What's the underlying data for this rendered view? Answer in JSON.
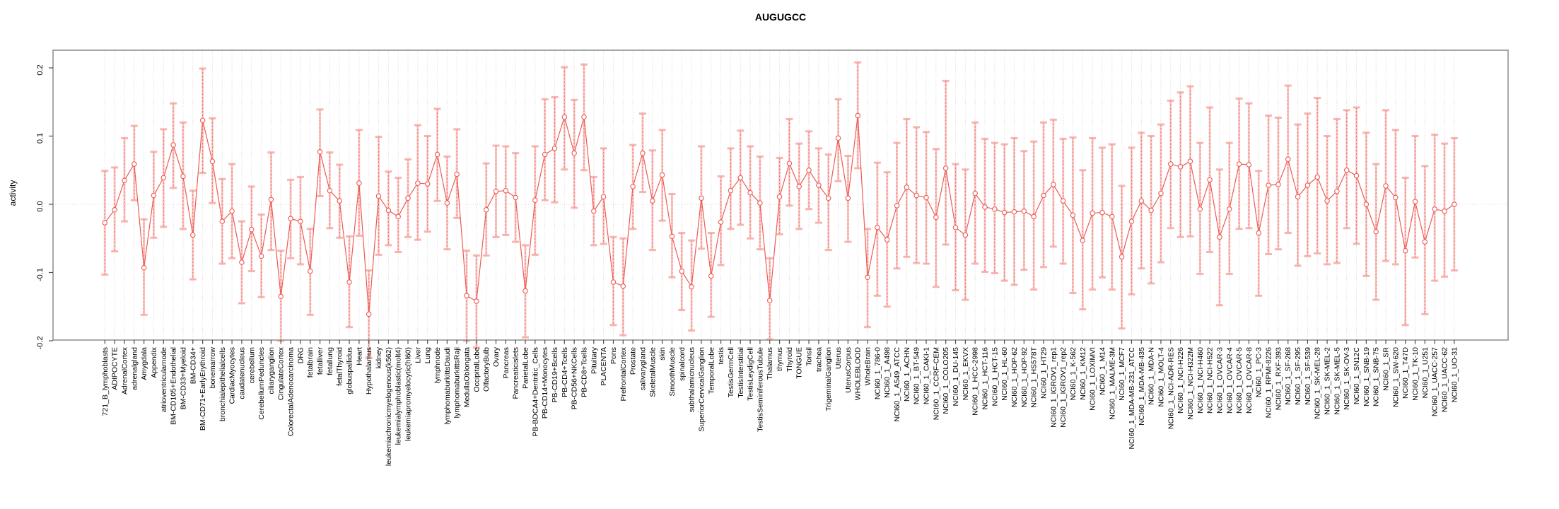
{
  "chart_data": {
    "type": "scatter",
    "subtype": "points-with-error-bars-and-connecting-line",
    "title": "AUGUGCC",
    "xlabel": "",
    "ylabel": "activity",
    "ylim": [
      -0.23,
      0.23
    ],
    "yticks": [
      0.2,
      0.1,
      0.0,
      -0.1,
      -0.2
    ],
    "ytick_labels": [
      "0.2",
      "0.1",
      "0.0",
      "-0.1",
      "-0.2"
    ],
    "grid": "vertical dotted gridline at every category; dotted horizontal line at 0",
    "legend_position": "none",
    "series_name": "activity",
    "categories": [
      "721_B_lymphoblasts",
      "ADIPOCYTE",
      "AdrenalCortex",
      "adrenalgland",
      "Amygdala",
      "Appendix",
      "atrioventricularnode",
      "BM-CD105+Endothelial",
      "BM-CD33+Myeloid",
      "BM-CD34+",
      "BM-CD71+EarlyErythroid",
      "bonemarrow",
      "bronchialepithelialcells",
      "CardiacMyocytes",
      "caudatenucleus",
      "cerebellum",
      "CerebellumPeduncles",
      "ciliaryganglion",
      "CingulateCortex",
      "ColorectalAdenocarcinoma",
      "DRG",
      "fetalbrain",
      "fetalliver",
      "fetallung",
      "fetalThyroid",
      "globuspallidus",
      "Heart",
      "Hypothalamus",
      "kidney",
      "leukemiachronicmyelogenous(k562)",
      "leukemialymphoblastic(molt4)",
      "leukemiapromyelocytic(hl60)",
      "Liver",
      "Lung",
      "lymphnode",
      "lymphomaburkittsDaudi",
      "lymphomaburkittsRaji",
      "MedullaOblongata",
      "OccipitalLobe",
      "OlfactoryBulb",
      "Ovary",
      "Pancreas",
      "Pancreaticislets",
      "ParietalLobe",
      "PB-BDCA4+Dentritic_Cells",
      "PB-CD14+Monocytes",
      "PB-CD19+Bcells",
      "PB-CD4+Tcells",
      "PB-CD56+NKCells",
      "PB-CD8+Tcells",
      "Pituitary",
      "PLACENTA",
      "Pons",
      "PrefrontalCortex",
      "Prostate",
      "salivarygland",
      "SkeletalMuscle",
      "skin",
      "SmoothMuscle",
      "spinalcord",
      "subthalamicnucleus",
      "SuperiorCervicalGanglion",
      "TemporalLobe",
      "testis",
      "TestisGermCell",
      "TestisInterstitial",
      "TestisLeydigCell",
      "TestisSeminiferousTubule",
      "Thalamus",
      "thymus",
      "Thyroid",
      "TONGUE",
      "Tonsil",
      "trachea",
      "TrigeminalGanglion",
      "Uterus",
      "UterusCorpus",
      "WHOLEBLOOD",
      "WholeBrain",
      "NCI60_1_786-0",
      "NCI60_1_A498",
      "NCI60_1_A549_ATCC",
      "NCI60_1_ACHN",
      "NCI60_1_BT-549",
      "NCI60_1_CAKI-1",
      "NCI60_1_CCRF-CEM",
      "NCI60_1_COLO205",
      "NCI60_1_DU-145",
      "NCI60_1_EKVX",
      "NCI60_1_HCC-2998",
      "NCI60_1_HCT-116",
      "NCI60_1_HCT-15",
      "NCI60_1_HL-60",
      "NCI60_1_HOP-62",
      "NCI60_1_HOP-92",
      "NCI60_1_HS578T",
      "NCI60_1_HT29",
      "NCI60_1_IGROV1_rep1",
      "NCI60_1_IGROV1_rep2",
      "NCI60_1_K-562",
      "NCI60_1_KM12",
      "NCI60_1_LOXIMVI",
      "NCI60_1_M14",
      "NCI60_1_MALME-3M",
      "NCI60_1_MCF7",
      "NCI60_1_MDA-MB-231_ATCC",
      "NCI60_1_MDA-MB-435",
      "NCI60_1_MDA-N",
      "NCI60_1_MOLT-4",
      "NCI60_1_NCI-ADR-RES",
      "NCI60_1_NCI-H226",
      "NCI60_1_NCI-H322M",
      "NCI60_1_NCI-H460",
      "NCI60_1_NCI-H522",
      "NCI60_1_OVCAR-3",
      "NCI60_1_OVCAR-4",
      "NCI60_1_OVCAR-5",
      "NCI60_1_OVCAR-8",
      "NCI60_1_PC-3",
      "NCI60_1_RPMI-8226",
      "NCI60_1_RXF-393",
      "NCI60_1_SF-268",
      "NCI60_1_SF-295",
      "NCI60_1_SF-539",
      "NCI60_1_SK-MEL-28",
      "NCI60_1_SK-MEL-2",
      "NCI60_1_SK-MEL-5",
      "NCI60_1_SK-OV-3",
      "NCI60_1_SN12C",
      "NCI60_1_SNB-19",
      "NCI60_1_SNB-75",
      "NCI60_1_SR",
      "NCI60_1_SW-620",
      "NCI60_1_T47D",
      "NCI60_1_TK-10",
      "NCI60_1_U251",
      "NCI60_1_UACC-257",
      "NCI60_1_UACC-62",
      "NCI60_1_UO-31"
    ],
    "values": [
      -0.027,
      -0.008,
      0.035,
      0.059,
      -0.093,
      0.013,
      0.039,
      0.087,
      0.041,
      -0.045,
      0.123,
      0.063,
      -0.025,
      -0.01,
      -0.085,
      -0.037,
      -0.076,
      0.007,
      -0.135,
      -0.021,
      -0.025,
      -0.098,
      0.077,
      0.02,
      0.005,
      -0.114,
      0.031,
      -0.161,
      0.012,
      -0.009,
      -0.018,
      0.009,
      0.031,
      0.03,
      0.073,
      0.002,
      0.044,
      -0.134,
      -0.142,
      -0.008,
      0.019,
      0.02,
      0.01,
      -0.127,
      0.006,
      0.073,
      0.082,
      0.128,
      0.075,
      0.128,
      -0.01,
      0.011,
      -0.114,
      -0.12,
      0.026,
      0.075,
      0.005,
      0.043,
      -0.047,
      -0.098,
      -0.121,
      0.009,
      -0.105,
      -0.026,
      0.02,
      0.039,
      0.017,
      0.002,
      -0.141,
      0.011,
      0.06,
      0.026,
      0.05,
      0.028,
      0.009,
      0.097,
      0.009,
      0.13,
      -0.107,
      -0.034,
      -0.052,
      -0.002,
      0.025,
      0.013,
      0.01,
      -0.019,
      0.053,
      -0.034,
      -0.045,
      0.016,
      -0.004,
      -0.007,
      -0.012,
      -0.011,
      -0.01,
      -0.018,
      0.013,
      0.029,
      0.005,
      -0.016,
      -0.053,
      -0.013,
      -0.012,
      -0.018,
      -0.077,
      -0.025,
      0.005,
      -0.009,
      0.016,
      0.059,
      0.055,
      0.063,
      -0.007,
      0.036,
      -0.048,
      -0.007,
      0.059,
      0.058,
      -0.042,
      0.028,
      0.029,
      0.066,
      0.011,
      0.028,
      0.04,
      0.005,
      0.019,
      0.05,
      0.042,
      0.0,
      -0.04,
      0.027,
      0.01,
      -0.068,
      0.004,
      -0.055,
      -0.007,
      -0.01,
      0.0
    ],
    "ci_low": [
      -0.103,
      -0.069,
      -0.025,
      0.006,
      -0.162,
      -0.049,
      -0.033,
      0.024,
      -0.036,
      -0.11,
      0.046,
      0.002,
      -0.087,
      -0.079,
      -0.145,
      -0.098,
      -0.136,
      -0.067,
      -0.2,
      -0.079,
      -0.088,
      -0.162,
      0.012,
      -0.035,
      -0.049,
      -0.18,
      -0.046,
      -0.225,
      -0.074,
      -0.06,
      -0.07,
      -0.048,
      -0.052,
      -0.04,
      0.005,
      -0.066,
      -0.02,
      -0.2,
      -0.21,
      -0.075,
      -0.048,
      -0.045,
      -0.055,
      -0.195,
      -0.074,
      0.006,
      0.003,
      0.051,
      -0.005,
      0.05,
      -0.06,
      -0.058,
      -0.177,
      -0.192,
      -0.036,
      0.018,
      -0.067,
      -0.024,
      -0.107,
      -0.155,
      -0.185,
      -0.065,
      -0.165,
      -0.089,
      -0.036,
      -0.03,
      -0.05,
      -0.066,
      -0.198,
      -0.044,
      -0.002,
      -0.036,
      -0.007,
      -0.027,
      -0.067,
      0.034,
      -0.055,
      0.053,
      -0.18,
      -0.134,
      -0.15,
      -0.094,
      -0.077,
      -0.086,
      -0.087,
      -0.121,
      -0.059,
      -0.126,
      -0.14,
      -0.087,
      -0.099,
      -0.101,
      -0.112,
      -0.118,
      -0.096,
      -0.125,
      -0.092,
      -0.062,
      -0.087,
      -0.13,
      -0.154,
      -0.125,
      -0.107,
      -0.125,
      -0.182,
      -0.132,
      -0.094,
      -0.116,
      -0.085,
      -0.035,
      -0.048,
      -0.047,
      -0.102,
      -0.07,
      -0.148,
      -0.102,
      -0.036,
      -0.035,
      -0.134,
      -0.073,
      -0.066,
      -0.042,
      -0.09,
      -0.076,
      -0.072,
      -0.088,
      -0.086,
      -0.035,
      -0.058,
      -0.105,
      -0.14,
      -0.083,
      -0.088,
      -0.177,
      -0.078,
      -0.161,
      -0.112,
      -0.106,
      -0.097
    ],
    "ci_high": [
      0.049,
      0.054,
      0.097,
      0.115,
      -0.022,
      0.077,
      0.11,
      0.148,
      0.12,
      0.02,
      0.199,
      0.126,
      0.037,
      0.059,
      -0.025,
      0.026,
      -0.015,
      0.076,
      -0.068,
      0.036,
      0.04,
      -0.036,
      0.139,
      0.076,
      0.058,
      -0.047,
      0.109,
      -0.097,
      0.099,
      0.048,
      0.039,
      0.066,
      0.116,
      0.1,
      0.14,
      0.07,
      0.11,
      -0.068,
      -0.075,
      0.06,
      0.086,
      0.085,
      0.075,
      -0.06,
      0.085,
      0.154,
      0.157,
      0.201,
      0.153,
      0.205,
      0.04,
      0.082,
      -0.048,
      -0.05,
      0.087,
      0.133,
      0.079,
      0.109,
      0.015,
      -0.042,
      -0.053,
      0.085,
      -0.042,
      0.041,
      0.082,
      0.108,
      0.085,
      0.07,
      -0.079,
      0.068,
      0.125,
      0.089,
      0.107,
      0.082,
      0.073,
      0.154,
      0.071,
      0.208,
      -0.036,
      0.061,
      0.047,
      0.09,
      0.125,
      0.113,
      0.106,
      0.081,
      0.181,
      0.059,
      0.051,
      0.12,
      0.096,
      0.09,
      0.088,
      0.097,
      0.078,
      0.092,
      0.12,
      0.124,
      0.096,
      0.098,
      0.05,
      0.097,
      0.083,
      0.088,
      0.027,
      0.083,
      0.105,
      0.1,
      0.117,
      0.152,
      0.164,
      0.173,
      0.09,
      0.142,
      0.051,
      0.09,
      0.155,
      0.148,
      0.049,
      0.13,
      0.127,
      0.174,
      0.117,
      0.133,
      0.156,
      0.1,
      0.125,
      0.138,
      0.142,
      0.105,
      0.059,
      0.138,
      0.109,
      0.039,
      0.1,
      0.056,
      0.102,
      0.089,
      0.097
    ],
    "colors": {
      "point_and_line": "#ee5a53",
      "error_bar": "#f7a39d",
      "error_bar_dash": "#ee6a64",
      "gridline": "#d9d9d9",
      "zero_line": "#d9d9d9",
      "plot_border": "#8c8c8c",
      "tick": "#4d4d4d",
      "text": "#000000",
      "background": "#ffffff"
    }
  }
}
